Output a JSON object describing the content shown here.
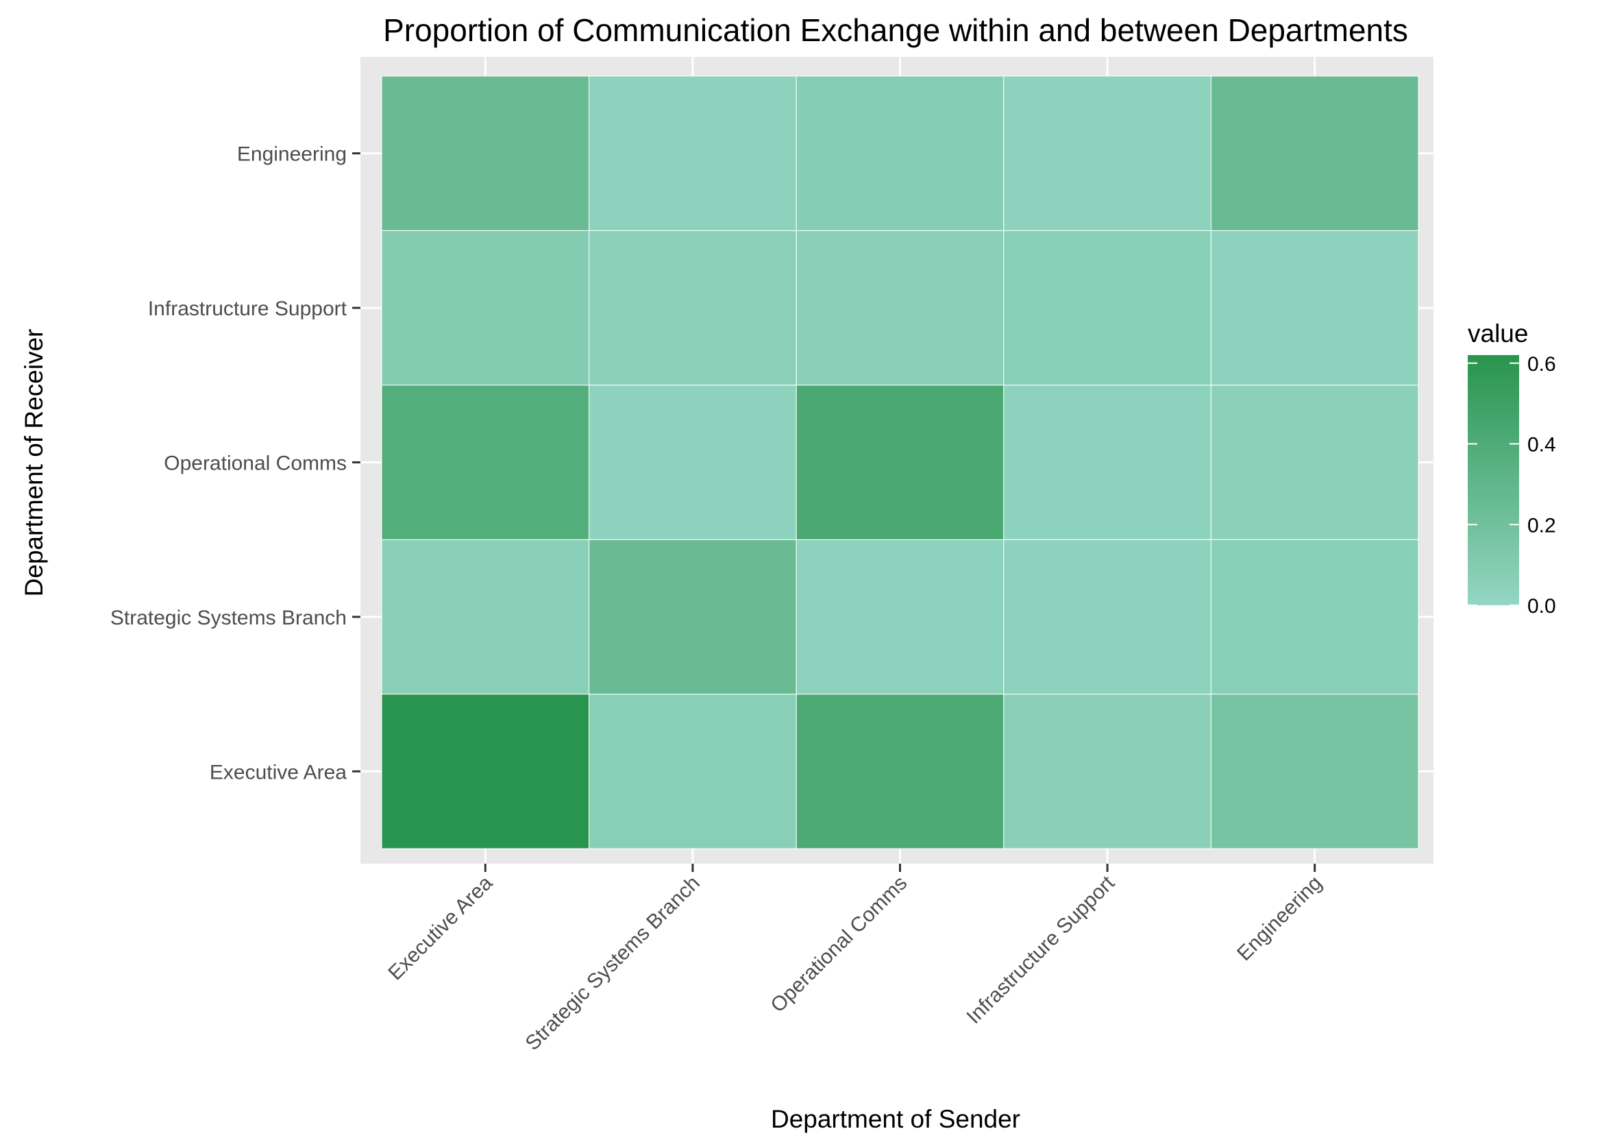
{
  "chart_data": {
    "type": "heatmap",
    "title": "Proportion of  Communication Exchange within and between Departments",
    "xlabel": "Department of Sender",
    "ylabel": "Department of Receiver",
    "x_categories": [
      "Executive Area",
      "Strategic Systems Branch",
      "Operational Comms",
      "Infrastructure Support",
      "Engineering"
    ],
    "y_categories": [
      "Executive Area",
      "Strategic Systems Branch",
      "Operational Comms",
      "Infrastructure Support",
      "Engineering"
    ],
    "values": [
      [
        0.62,
        0.07,
        0.41,
        0.06,
        0.17
      ],
      [
        0.06,
        0.25,
        0.04,
        0.04,
        0.07
      ],
      [
        0.38,
        0.04,
        0.43,
        0.04,
        0.05
      ],
      [
        0.1,
        0.05,
        0.06,
        0.07,
        0.04
      ],
      [
        0.25,
        0.04,
        0.08,
        0.04,
        0.25
      ]
    ],
    "legend": {
      "title": "value",
      "ticks": [
        0.0,
        0.2,
        0.4,
        0.6
      ],
      "tick_labels": [
        "0.0",
        "0.2",
        "0.4",
        "0.6"
      ],
      "range": [
        0,
        0.62
      ],
      "low_color": "#94d6c4",
      "high_color": "#29944d",
      "placement": "right"
    },
    "panel_background": "#e8e8e8",
    "grid": true
  }
}
